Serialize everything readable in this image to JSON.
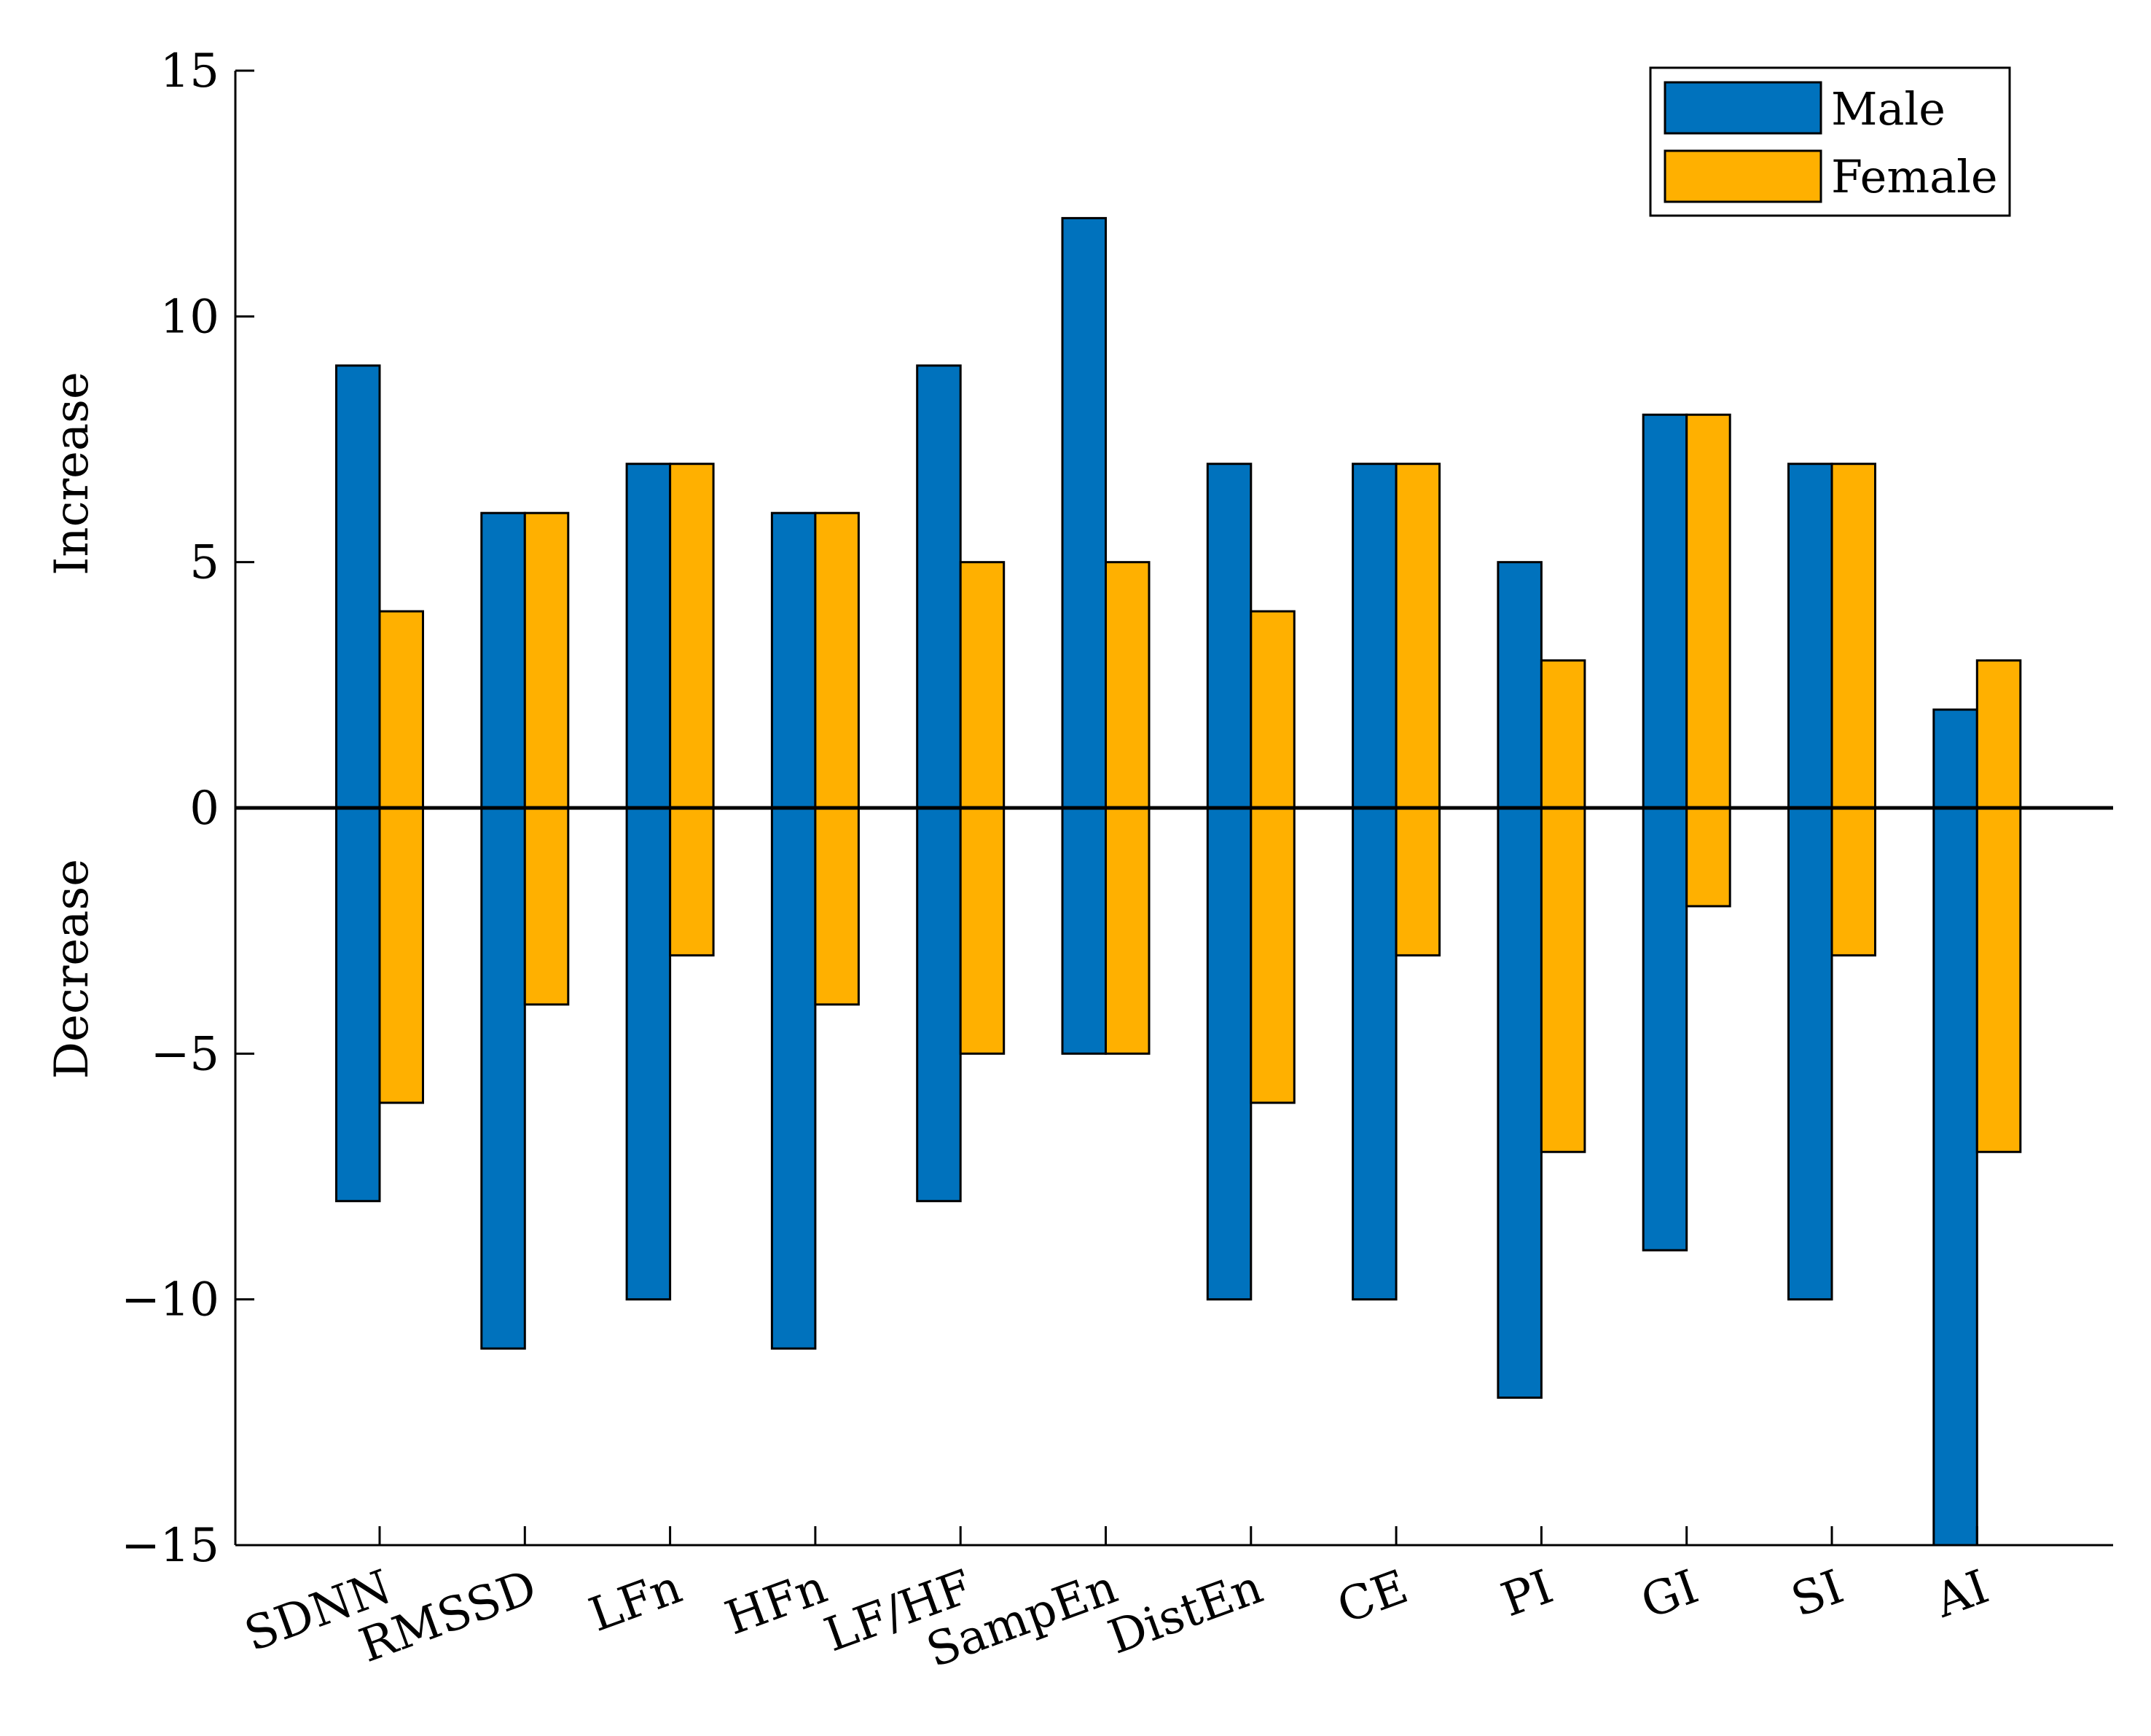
{
  "chart_data": {
    "type": "bar",
    "categories": [
      "SDNN",
      "RMSSD",
      "LFn",
      "HFn",
      "LF/HF",
      "SampEn",
      "DistEn",
      "CE",
      "PI",
      "GI",
      "SI",
      "AI"
    ],
    "series": [
      {
        "name": "Male",
        "color": "#0072BD",
        "increase": [
          9,
          6,
          7,
          6,
          9,
          12,
          7,
          7,
          5,
          8,
          7,
          2
        ],
        "decrease": [
          -8,
          -11,
          -10,
          -11,
          -8,
          -5,
          -10,
          -10,
          -12,
          -9,
          -10,
          -15
        ]
      },
      {
        "name": "Female",
        "color": "#FFB000",
        "increase": [
          4,
          6,
          7,
          6,
          5,
          5,
          4,
          7,
          3,
          8,
          7,
          3
        ],
        "decrease": [
          -6,
          -4,
          -3,
          -4,
          -5,
          -5,
          -6,
          -3,
          -7,
          -2,
          -3,
          -7
        ]
      }
    ],
    "ylim": [
      -15,
      15
    ],
    "yticks": [
      -15,
      -10,
      -5,
      0,
      5,
      10,
      15
    ],
    "ytick_labels": [
      "−15",
      "−10",
      "−5",
      "0",
      "5",
      "10",
      "15"
    ],
    "ylabel_top": "Increase",
    "ylabel_bottom": "Decrease",
    "legend_position": "top-right",
    "grid": false
  }
}
